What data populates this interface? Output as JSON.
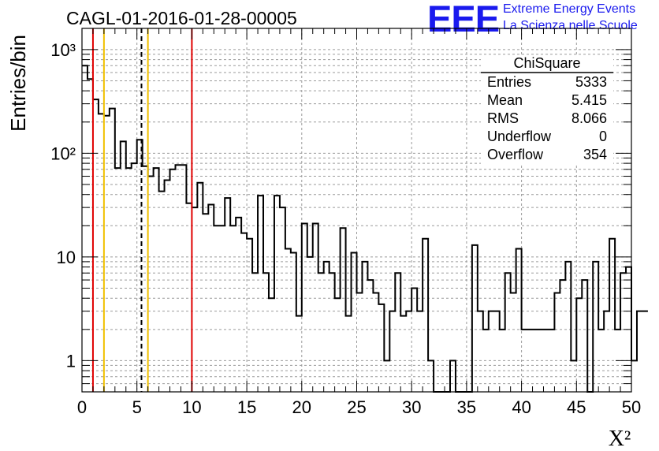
{
  "logo": {
    "mark": "EEE",
    "line1": "Extreme Energy Events",
    "line2": "La Scienza nelle Scuole"
  },
  "chart_data": {
    "type": "histogram",
    "title": "CAGL-01-2016-01-28-00005",
    "xlabel": "X²",
    "ylabel": "Entries/bin",
    "x_scale": "linear",
    "y_scale": "log",
    "xlim": [
      0,
      50
    ],
    "ylim": [
      0.5,
      1600
    ],
    "x_ticks": [
      "0",
      "5",
      "10",
      "15",
      "20",
      "25",
      "30",
      "35",
      "40",
      "45",
      "50"
    ],
    "y_ticks": [
      "1",
      "10",
      "10²",
      "10³"
    ],
    "grid": true,
    "bin_width": 0.5,
    "bin_start": 0,
    "values": [
      700,
      520,
      330,
      240,
      230,
      270,
      72,
      130,
      72,
      80,
      135,
      75,
      60,
      72,
      43,
      55,
      70,
      77,
      77,
      33,
      30,
      52,
      26,
      32,
      20,
      20,
      37,
      20,
      24,
      17,
      15,
      7,
      39,
      7,
      4,
      39,
      30,
      12,
      11,
      2.7,
      21,
      10,
      21,
      7,
      9,
      7,
      4,
      19,
      2.7,
      11,
      4.5,
      9,
      6,
      4.5,
      3.5,
      1,
      3,
      7,
      2.7,
      3,
      5,
      3,
      15,
      1,
      0,
      0,
      0,
      1,
      0,
      0,
      0,
      13,
      3,
      2,
      3,
      3,
      2,
      7,
      4.5,
      12,
      2,
      2,
      2,
      2,
      2,
      2,
      4.5,
      6,
      9,
      1,
      4,
      6,
      0,
      9,
      2,
      3,
      15,
      2,
      7,
      8,
      1,
      3,
      3
    ],
    "vertical_lines": [
      {
        "x": 1,
        "color": "#e00000",
        "style": "solid"
      },
      {
        "x": 2,
        "color": "#f0c000",
        "style": "solid"
      },
      {
        "x": 5.415,
        "color": "#000000",
        "style": "dashed"
      },
      {
        "x": 6,
        "color": "#f0c000",
        "style": "solid"
      },
      {
        "x": 10,
        "color": "#e00000",
        "style": "solid"
      }
    ],
    "stats_box": {
      "name": "ChiSquare",
      "rows": [
        {
          "label": "Entries",
          "value": "5333"
        },
        {
          "label": "Mean",
          "value": "5.415"
        },
        {
          "label": "RMS",
          "value": "8.066"
        },
        {
          "label": "Underflow",
          "value": "0"
        },
        {
          "label": "Overflow",
          "value": "354"
        }
      ]
    }
  }
}
